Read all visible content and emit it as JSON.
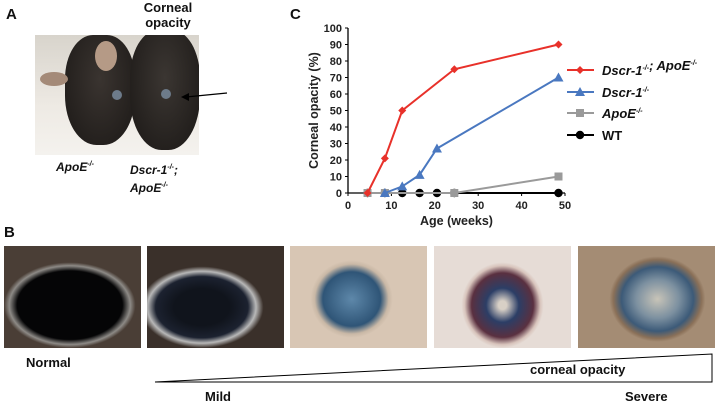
{
  "panels": {
    "a": {
      "label": "A",
      "title": "Corneal opacity",
      "genotype_left": "ApoE",
      "genotype_left_sup": "-/-",
      "genotype_right_1": "Dscr-1",
      "genotype_right_1_sup": "-/-",
      "genotype_right_sep": ";",
      "genotype_right_2": "ApoE",
      "genotype_right_2_sup": "-/-"
    },
    "b": {
      "label": "B",
      "normal": "Normal",
      "mild": "Mild",
      "severe": "Severe",
      "scale_label": "corneal opacity"
    },
    "c": {
      "label": "C"
    }
  },
  "chart_data": {
    "type": "line",
    "xlabel": "Age (weeks)",
    "ylabel": "Corneal opacity (%)",
    "xlim": [
      0,
      50
    ],
    "ylim": [
      0,
      100
    ],
    "xticks": [
      "0",
      "10",
      "20",
      "30",
      "40",
      "50"
    ],
    "yticks": [
      "0",
      "10",
      "20",
      "30",
      "40",
      "50",
      "60",
      "70",
      "80",
      "90",
      "100"
    ],
    "grid": false,
    "legend_position": "right",
    "series": [
      {
        "name": "Dscr-1-/-; ApoE-/-",
        "legend_main": "Dscr-1",
        "legend_sup1": "-/-",
        "legend_mid": "; ApoE",
        "legend_sup2": "-/-",
        "color": "#e8312a",
        "marker": "diamond",
        "x": [
          4.5,
          8.5,
          12.5,
          24.5,
          48.5
        ],
        "y": [
          0,
          21,
          50,
          75,
          90
        ]
      },
      {
        "name": "Dscr-1-/-",
        "legend_main": "Dscr-1",
        "legend_sup1": "-/-",
        "color": "#4a78c0",
        "marker": "triangle",
        "x": [
          8.5,
          12.5,
          16.5,
          20.5,
          48.5
        ],
        "y": [
          0,
          4,
          11,
          27,
          70
        ]
      },
      {
        "name": "ApoE-/-",
        "legend_main": "ApoE",
        "legend_sup1": "-/-",
        "color": "#9a9a9a",
        "marker": "square",
        "x": [
          4.5,
          8.5,
          24.5,
          48.5
        ],
        "y": [
          0,
          0,
          0,
          10
        ]
      },
      {
        "name": "WT",
        "legend_main": "WT",
        "color": "#000000",
        "marker": "circle",
        "x": [
          4.5,
          8.5,
          12.5,
          16.5,
          20.5,
          24.5,
          48.5
        ],
        "y": [
          0,
          0,
          0,
          0,
          0,
          0,
          0
        ]
      }
    ]
  }
}
